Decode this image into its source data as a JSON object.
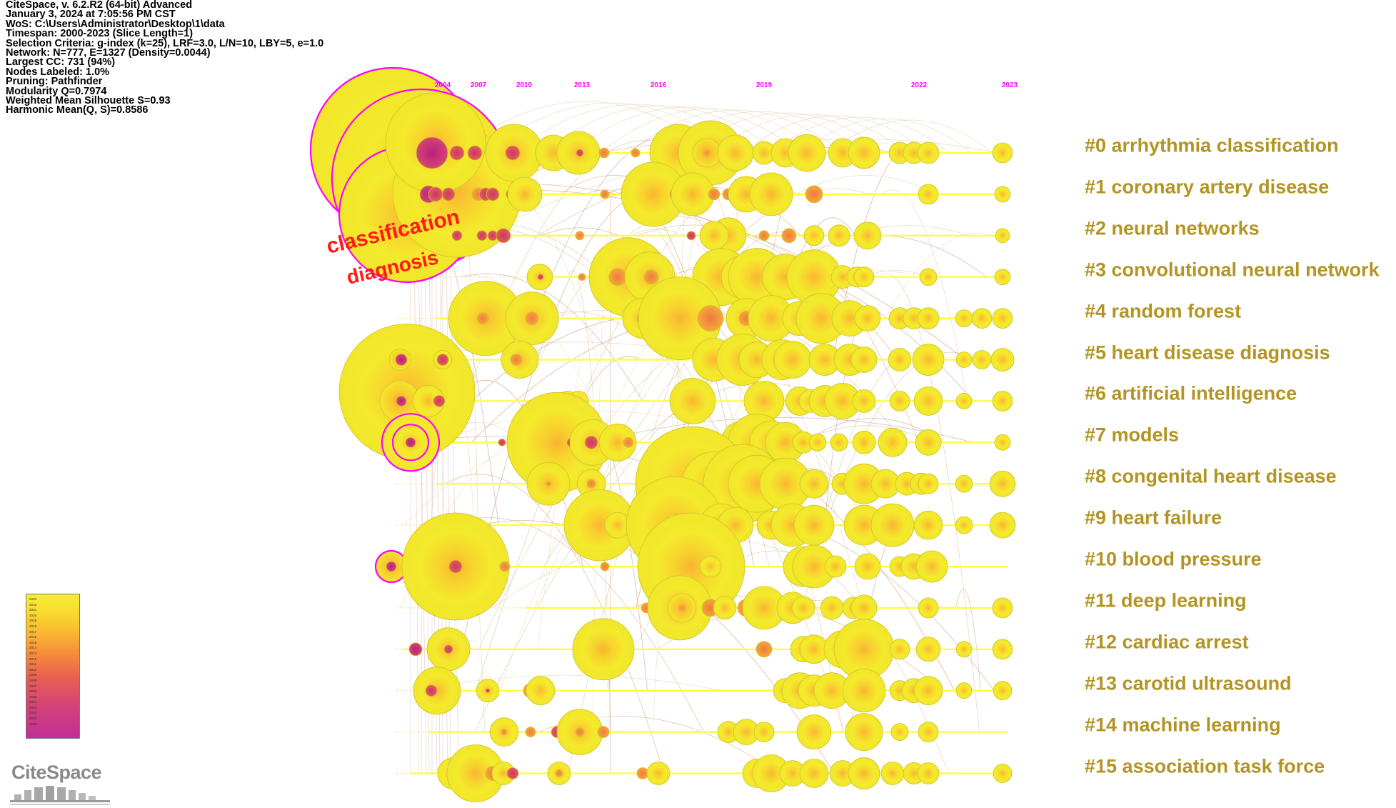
{
  "info_lines": [
    "CiteSpace, v. 6.2.R2 (64-bit) Advanced",
    "January 3, 2024 at 7:05:56 PM CST",
    "WoS: C:\\Users\\Administrator\\Desktop\\1\\data",
    "Timespan: 2000-2023 (Slice Length=1)",
    "Selection Criteria: g-index (k=25), LRF=3.0, L/N=10, LBY=5, e=1.0",
    "Network: N=777, E=1327 (Density=0.0044)",
    "Largest CC: 731 (94%)",
    "Nodes Labeled: 1.0%",
    "Pruning: Pathfinder",
    "Modularity Q=0.7974",
    "Weighted Mean Silhouette S=0.93",
    "Harmonic Mean(Q, S)=0.8586"
  ],
  "timeline": {
    "year_labels": [
      "2004",
      "2007",
      "2010",
      "2013",
      "2016",
      "2019",
      "2022",
      "2023"
    ],
    "year_min": 2000,
    "year_max": 2023
  },
  "clusters": [
    {
      "label": "#0 arrhythmia classification"
    },
    {
      "label": "#1 coronary artery disease"
    },
    {
      "label": "#2 neural networks"
    },
    {
      "label": "#3 convolutional neural network"
    },
    {
      "label": "#4 random forest"
    },
    {
      "label": "#5 heart disease diagnosis"
    },
    {
      "label": "#6 artificial intelligence"
    },
    {
      "label": "#7 models"
    },
    {
      "label": "#8 congenital heart disease"
    },
    {
      "label": "#9 heart failure"
    },
    {
      "label": "#10 blood pressure"
    },
    {
      "label": "#11 deep learning"
    },
    {
      "label": "#12 cardiac arrest"
    },
    {
      "label": "#13 carotid ultrasound"
    },
    {
      "label": "#14 machine learning"
    },
    {
      "label": "#15 association task force"
    }
  ],
  "node_labels": [
    "classification",
    "diagnosis"
  ],
  "legend": {
    "years": [
      "2023",
      "2022",
      "2021",
      "2020",
      "2019",
      "2018",
      "2017",
      "2016",
      "2015",
      "2014",
      "2013",
      "2012",
      "2011",
      "2010",
      "2009",
      "2008",
      "2007",
      "2006",
      "2005",
      "2004",
      "2003",
      "2002",
      "2001",
      "2000"
    ],
    "color_new": "#f7ee33",
    "color_old": "#c12e97"
  },
  "logo_text": "CiteSpace",
  "colors": {
    "timeline_line": "#ffff33",
    "cluster_label": "#b39422",
    "year_label": "#ff00ff",
    "burst_ring": "#ff00ff",
    "node_label": "#ff1a1a"
  }
}
